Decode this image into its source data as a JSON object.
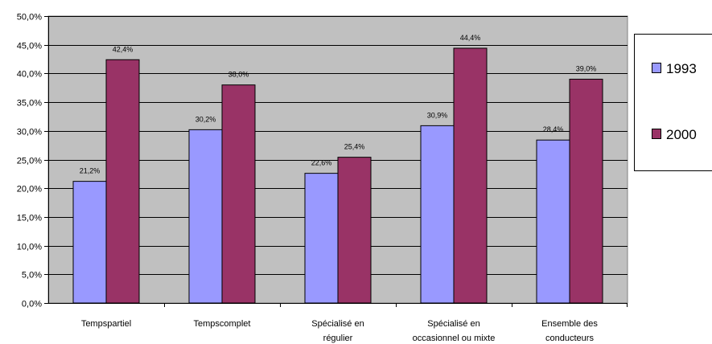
{
  "chart_data": {
    "type": "bar",
    "categories": [
      [
        "Tempspartiel"
      ],
      [
        "Tempscomplet"
      ],
      [
        "Spécialisé en",
        "régulier"
      ],
      [
        "Spécialisé en",
        "occasionnel ou mixte"
      ],
      [
        "Ensemble des",
        "conducteurs"
      ]
    ],
    "series": [
      {
        "name": "1993",
        "values": [
          21.2,
          30.2,
          22.6,
          30.9,
          28.4
        ],
        "labels": [
          "21,2%",
          "30,2%",
          "22,6%",
          "30,9%",
          "28,4%"
        ],
        "color": "#9999ff"
      },
      {
        "name": "2000",
        "values": [
          42.4,
          38.0,
          25.4,
          44.4,
          39.0
        ],
        "labels": [
          "42,4%",
          "38,0%",
          "25,4%",
          "44,4%",
          "39,0%"
        ],
        "color": "#993366"
      }
    ],
    "ylim": [
      0,
      50
    ],
    "ytick_step": 5,
    "ytick_labels": [
      "0,0%",
      "5,0%",
      "10,0%",
      "15,0%",
      "20,0%",
      "25,0%",
      "30,0%",
      "35,0%",
      "40,0%",
      "45,0%",
      "50,0%"
    ],
    "plot_background": "#c0c0c0",
    "grid": true,
    "legend_position": "right"
  }
}
